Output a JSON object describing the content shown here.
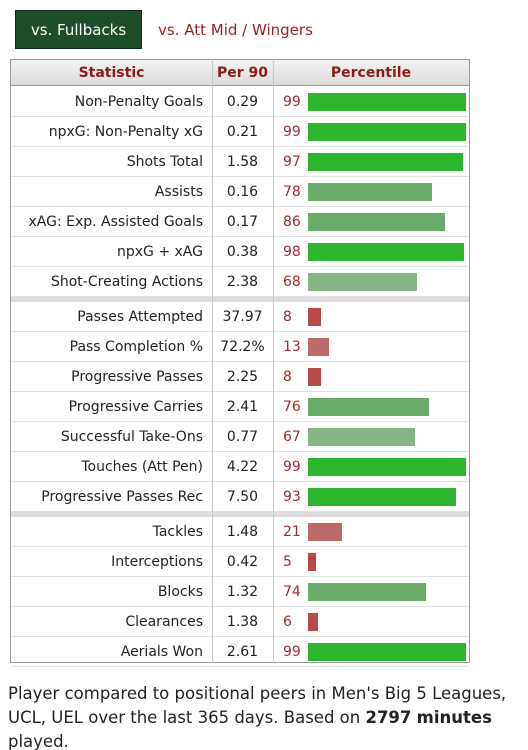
{
  "tabs": [
    {
      "label": "vs. Fullbacks",
      "active": true
    },
    {
      "label": "vs. Att Mid / Wingers",
      "active": false
    }
  ],
  "table": {
    "headers": {
      "statistic": "Statistic",
      "per90": "Per 90",
      "percentile": "Percentile"
    },
    "groups": [
      [
        {
          "stat": "Non-Penalty Goals",
          "per90": "0.29",
          "pct": 99
        },
        {
          "stat": "npxG: Non-Penalty xG",
          "per90": "0.21",
          "pct": 99
        },
        {
          "stat": "Shots Total",
          "per90": "1.58",
          "pct": 97
        },
        {
          "stat": "Assists",
          "per90": "0.16",
          "pct": 78
        },
        {
          "stat": "xAG: Exp. Assisted Goals",
          "per90": "0.17",
          "pct": 86
        },
        {
          "stat": "npxG + xAG",
          "per90": "0.38",
          "pct": 98
        },
        {
          "stat": "Shot-Creating Actions",
          "per90": "2.38",
          "pct": 68
        }
      ],
      [
        {
          "stat": "Passes Attempted",
          "per90": "37.97",
          "pct": 8
        },
        {
          "stat": "Pass Completion %",
          "per90": "72.2%",
          "pct": 13
        },
        {
          "stat": "Progressive Passes",
          "per90": "2.25",
          "pct": 8
        },
        {
          "stat": "Progressive Carries",
          "per90": "2.41",
          "pct": 76
        },
        {
          "stat": "Successful Take-Ons",
          "per90": "0.77",
          "pct": 67
        },
        {
          "stat": "Touches (Att Pen)",
          "per90": "4.22",
          "pct": 99
        },
        {
          "stat": "Progressive Passes Rec",
          "per90": "7.50",
          "pct": 93
        }
      ],
      [
        {
          "stat": "Tackles",
          "per90": "1.48",
          "pct": 21
        },
        {
          "stat": "Interceptions",
          "per90": "0.42",
          "pct": 5
        },
        {
          "stat": "Blocks",
          "per90": "1.32",
          "pct": 74
        },
        {
          "stat": "Clearances",
          "per90": "1.38",
          "pct": 6
        },
        {
          "stat": "Aerials Won",
          "per90": "2.61",
          "pct": 99
        }
      ]
    ]
  },
  "footer": {
    "text_before": "Player compared to positional peers in Men's Big 5 Leagues, UCL, UEL over the last 365 days. Based on ",
    "minutes": "2797",
    "minutes_label": "minutes",
    "text_after": " played."
  },
  "colors": {
    "bar_high": "#2db52d",
    "bar_mid": "#6aab6a",
    "bar_midlow": "#85b585",
    "bar_low_strong": "#b94a4a",
    "bar_low_mid": "#bf6a6a",
    "tab_active_bg": "#1e4d2b",
    "header_text": "#8b1a1a"
  }
}
